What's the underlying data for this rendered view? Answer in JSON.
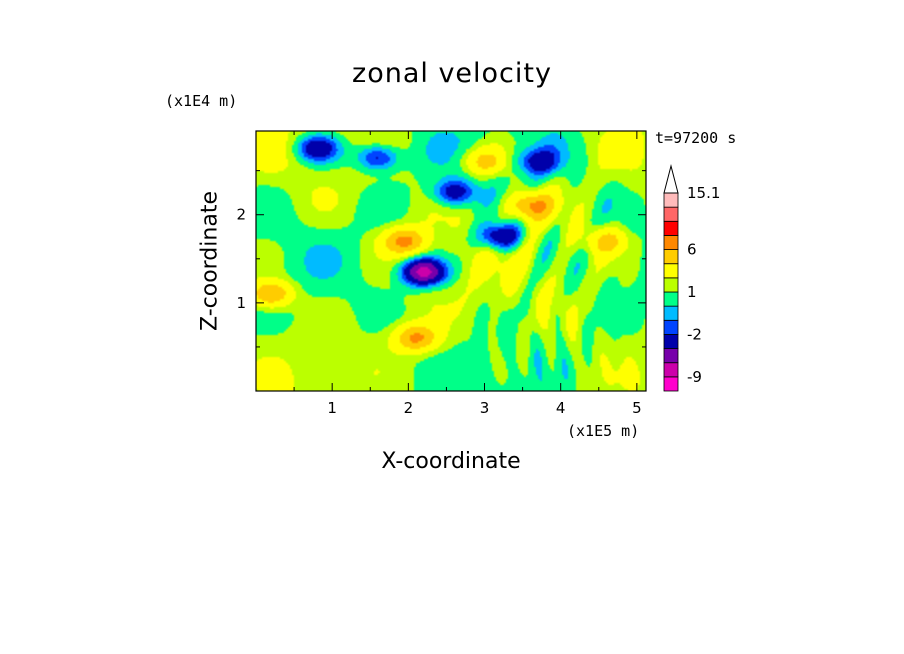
{
  "title": "zonal velocity",
  "time_label": "t=97200 s",
  "x_scale_label": "(x1E5 m)",
  "z_scale_label": "(x1E4 m)",
  "xlabel": "X-coordinate",
  "ylabel": "Z-coordinate",
  "chart_data": {
    "type": "heatmap",
    "title": "zonal velocity",
    "xlabel": "X-coordinate",
    "ylabel": "Z-coordinate",
    "xlim": [
      0,
      5.12
    ],
    "ylim": [
      0,
      2.95
    ],
    "x_ticks": [
      "1",
      "2",
      "3",
      "4",
      "5"
    ],
    "x_tick_values": [
      1,
      2,
      3,
      4,
      5
    ],
    "y_ticks": [
      "1",
      "2"
    ],
    "y_tick_values": [
      1,
      2
    ],
    "colorbar": {
      "tick_labels": [
        "15.1",
        "6",
        "1",
        "-2",
        "-9"
      ],
      "tick_values": [
        15.1,
        6,
        1,
        -2,
        -9
      ],
      "levels": [
        -12,
        -9,
        -6,
        -4,
        -2,
        -1,
        0,
        1,
        2,
        4,
        6,
        9,
        12,
        15.1
      ],
      "colors": [
        "#ff00cc",
        "#cc00aa",
        "#7700aa",
        "#0000aa",
        "#0044ff",
        "#00bbff",
        "#00ff88",
        "#bbff00",
        "#ffff00",
        "#ffcc00",
        "#ff8800",
        "#ff0000",
        "#ff6666",
        "#ffbbbb"
      ],
      "extend": "max"
    },
    "features": [
      {
        "kind": "min",
        "x": 2.2,
        "z": 1.35,
        "value": -9
      },
      {
        "kind": "min",
        "x": 3.2,
        "z": 1.75,
        "value": -6
      },
      {
        "kind": "min",
        "x": 0.8,
        "z": 2.75,
        "value": -5
      },
      {
        "kind": "min",
        "x": 1.6,
        "z": 2.65,
        "value": -5
      },
      {
        "kind": "min",
        "x": 2.6,
        "z": 2.25,
        "value": -5
      },
      {
        "kind": "min",
        "x": 3.7,
        "z": 2.6,
        "value": -4
      },
      {
        "kind": "max",
        "x": 1.95,
        "z": 1.7,
        "value": 6
      },
      {
        "kind": "max",
        "x": 2.1,
        "z": 0.6,
        "value": 6
      },
      {
        "kind": "max",
        "x": 3.6,
        "z": 2.1,
        "value": 6
      },
      {
        "kind": "max",
        "x": 0.2,
        "z": 1.1,
        "value": 6
      },
      {
        "kind": "max",
        "x": 4.6,
        "z": 1.7,
        "value": 4
      },
      {
        "kind": "max",
        "x": 3.0,
        "z": 2.6,
        "value": 4
      }
    ]
  }
}
